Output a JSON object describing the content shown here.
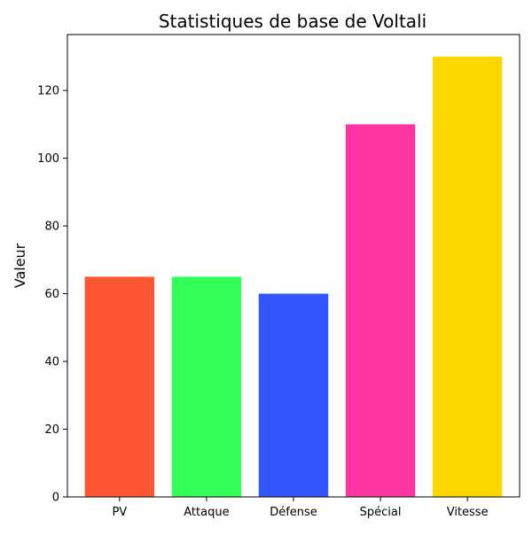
{
  "chart_data": {
    "type": "bar",
    "title": "Statistiques de base de Voltali",
    "xlabel": "",
    "ylabel": "Valeur",
    "categories": [
      "PV",
      "Attaque",
      "Défense",
      "Spécial",
      "Vitesse"
    ],
    "values": [
      65,
      65,
      60,
      110,
      130
    ],
    "colors": [
      "#ff5733",
      "#33ff57",
      "#3357ff",
      "#ff33a1",
      "#ffd700"
    ],
    "ylim": [
      0,
      136.5
    ],
    "yticks": [
      0,
      20,
      40,
      60,
      80,
      100,
      120
    ],
    "grid": false,
    "legend": false
  }
}
